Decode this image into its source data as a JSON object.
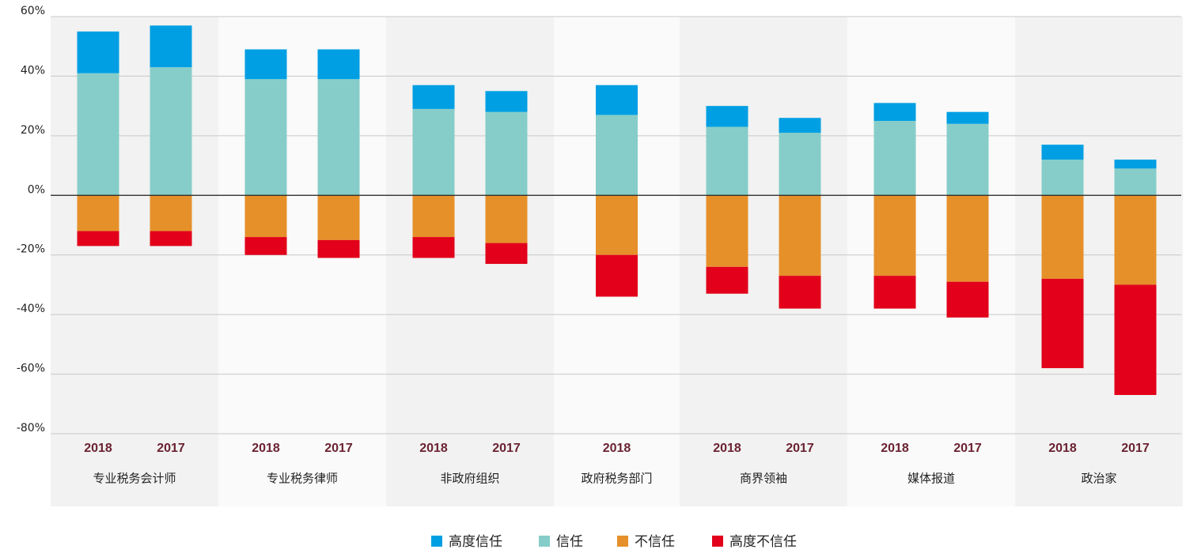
{
  "chart_data": {
    "type": "stacked_bar",
    "groups": [
      {
        "name": "专业税务会计师",
        "categories": [
          "2018",
          "2017"
        ]
      },
      {
        "name": "专业税务律师",
        "categories": [
          "2018",
          "2017"
        ]
      },
      {
        "name": "非政府组织",
        "categories": [
          "2018",
          "2017"
        ]
      },
      {
        "name": "政府税务部门",
        "categories": [
          "2018"
        ]
      },
      {
        "name": "商界领袖",
        "categories": [
          "2018",
          "2017"
        ]
      },
      {
        "name": "媒体报道",
        "categories": [
          "2018",
          "2017"
        ]
      },
      {
        "name": "政治家",
        "categories": [
          "2018",
          "2017"
        ]
      }
    ],
    "series": [
      {
        "name": "高度信任",
        "color": "#009fe3",
        "values": [
          14,
          14,
          10,
          10,
          8,
          7,
          10,
          7,
          5,
          6,
          4,
          5,
          3
        ]
      },
      {
        "name": "信任",
        "color": "#86cdc9",
        "values": [
          41,
          43,
          39,
          39,
          29,
          28,
          27,
          23,
          21,
          25,
          24,
          12,
          9
        ]
      },
      {
        "name": "不信任",
        "color": "#e6902a",
        "values": [
          -12,
          -12,
          -14,
          -15,
          -14,
          -16,
          -20,
          -24,
          -27,
          -27,
          -29,
          -28,
          -30
        ]
      },
      {
        "name": "高度不信任",
        "color": "#e2001a",
        "values": [
          -5,
          -5,
          -6,
          -6,
          -7,
          -7,
          -14,
          -9,
          -11,
          -11,
          -12,
          -30,
          -37
        ]
      }
    ],
    "ylim": [
      -80,
      60
    ],
    "yticks": [
      {
        "value": 60,
        "label": "60%"
      },
      {
        "value": 40,
        "label": "40%"
      },
      {
        "value": 20,
        "label": "20%"
      },
      {
        "value": 0,
        "label": "0%"
      },
      {
        "value": -20,
        "label": "-20%"
      },
      {
        "value": -40,
        "label": "-40%"
      },
      {
        "value": -60,
        "label": "-60%"
      },
      {
        "value": -80,
        "label": "-80%"
      }
    ],
    "grid": true
  }
}
